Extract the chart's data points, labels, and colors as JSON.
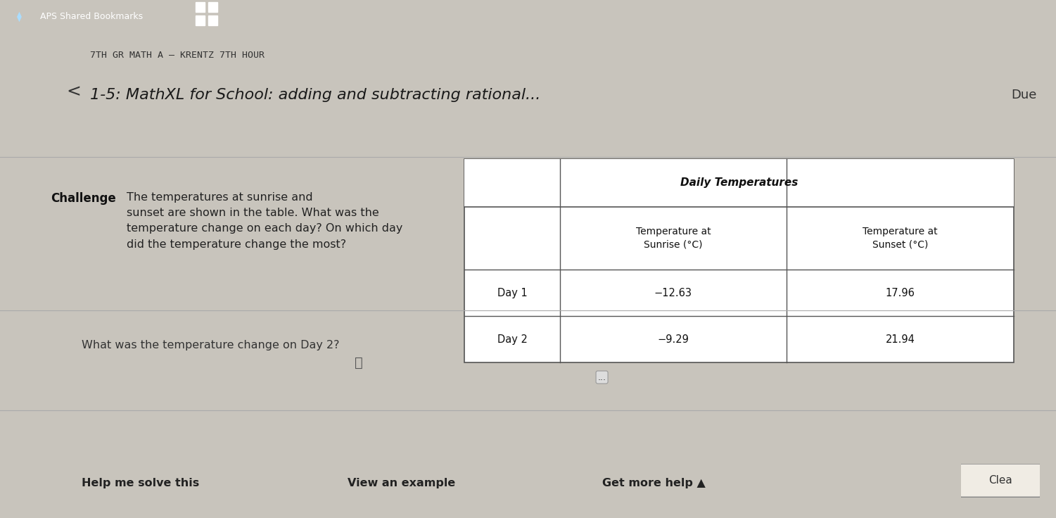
{
  "bg_top_bar": "#2d3e4f",
  "bg_top_bar_text": "APS Shared Bookmarks",
  "bg_header": "#d4d0c8",
  "bg_blue_bar": "#29a8e0",
  "bg_main": "#c8c4bc",
  "title_line1": "7TH GR MATH A – KRENTZ 7TH HOUR",
  "title_line2": "1-5: MathXL for School: adding and subtracting rational...",
  "due_text": "Due",
  "challenge_text": "Challenge",
  "problem_text": "The temperatures at sunrise and\nsunset are shown in the table. What was the\ntemperature change on each day? On which day\ndid the temperature change the most?",
  "table_title": "Daily Temperatures",
  "table_col1_header": "Temperature at\nSunrise (°C)",
  "table_col2_header": "Temperature at\nSunset (°C)",
  "table_row1_label": "Day 1",
  "table_row2_label": "Day 2",
  "table_row1_col1": "−12.63",
  "table_row1_col2": "17.96",
  "table_row2_col1": "−9.29",
  "table_row2_col2": "21.94",
  "dots_text": "...",
  "move_icon": "⭲",
  "question_text": "What was the temperature change on Day 2?",
  "bottom_left": "Help me solve this",
  "bottom_center": "View an example",
  "bottom_right": "Get more help ▲",
  "clear_text": "Clea",
  "back_arrow": "<"
}
